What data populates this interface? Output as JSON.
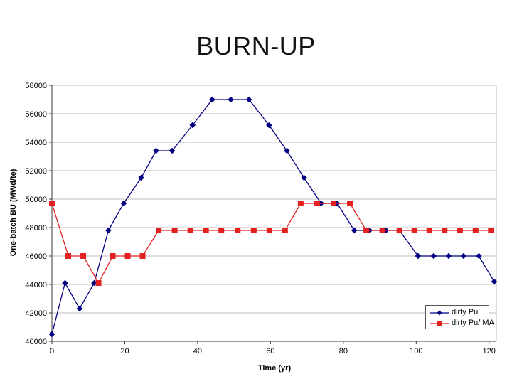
{
  "title": "BURN-UP",
  "chart_data": {
    "type": "line",
    "title": "BURN-UP",
    "xlabel": "Time (yr)",
    "ylabel": "One-batch BU (MWd/te)",
    "xlim": [
      0,
      122
    ],
    "ylim": [
      40000,
      58000
    ],
    "xticks": [
      0,
      20,
      40,
      60,
      80,
      100,
      120
    ],
    "yticks": [
      40000,
      42000,
      44000,
      46000,
      48000,
      50000,
      52000,
      54000,
      56000,
      58000
    ],
    "grid": "horizontal-only",
    "legend_position": "inside-bottom-right",
    "series": [
      {
        "name": "dirty Pu",
        "color": "#000080",
        "marker": "diamond",
        "points": [
          [
            0,
            40500
          ],
          [
            3.6,
            44100
          ],
          [
            7.6,
            42300
          ],
          [
            11.6,
            44100
          ],
          [
            15.5,
            47800
          ],
          [
            19.7,
            49700
          ],
          [
            24.5,
            51500
          ],
          [
            28.6,
            53400
          ],
          [
            33.0,
            53400
          ],
          [
            38.6,
            55200
          ],
          [
            44.0,
            57000
          ],
          [
            49.1,
            57000
          ],
          [
            54.1,
            57000
          ],
          [
            59.6,
            55200
          ],
          [
            64.5,
            53400
          ],
          [
            69.2,
            51500
          ],
          [
            73.9,
            49700
          ],
          [
            78.3,
            49700
          ],
          [
            83.0,
            47800
          ],
          [
            87.2,
            47800
          ],
          [
            91.7,
            47800
          ],
          [
            95.4,
            47800
          ],
          [
            100.5,
            46000
          ],
          [
            104.8,
            46000
          ],
          [
            108.9,
            46000
          ],
          [
            113.0,
            46000
          ],
          [
            117.2,
            46000
          ],
          [
            121.4,
            44200
          ]
        ]
      },
      {
        "name": "dirty Pu/ MA",
        "color": "#e32020",
        "marker": "square",
        "points": [
          [
            0,
            49700
          ],
          [
            4.5,
            46000
          ],
          [
            8.6,
            46000
          ],
          [
            12.8,
            44100
          ],
          [
            16.7,
            46000
          ],
          [
            20.8,
            46000
          ],
          [
            24.9,
            46000
          ],
          [
            29.3,
            47800
          ],
          [
            33.7,
            47800
          ],
          [
            38.0,
            47800
          ],
          [
            42.3,
            47800
          ],
          [
            46.5,
            47800
          ],
          [
            51.0,
            47800
          ],
          [
            55.4,
            47800
          ],
          [
            59.7,
            47800
          ],
          [
            64.0,
            47800
          ],
          [
            68.3,
            49700
          ],
          [
            72.8,
            49700
          ],
          [
            77.3,
            49700
          ],
          [
            81.8,
            49700
          ],
          [
            86.3,
            47800
          ],
          [
            90.7,
            47800
          ],
          [
            95.4,
            47800
          ],
          [
            99.5,
            47800
          ],
          [
            103.6,
            47800
          ],
          [
            107.8,
            47800
          ],
          [
            112.0,
            47800
          ],
          [
            116.3,
            47800
          ],
          [
            120.5,
            47800
          ]
        ]
      }
    ],
    "colors": {
      "gridline": "#bdbdbd",
      "axis": "#3a3a3a",
      "text": "#000000",
      "plot_background": "#ffffff"
    }
  }
}
